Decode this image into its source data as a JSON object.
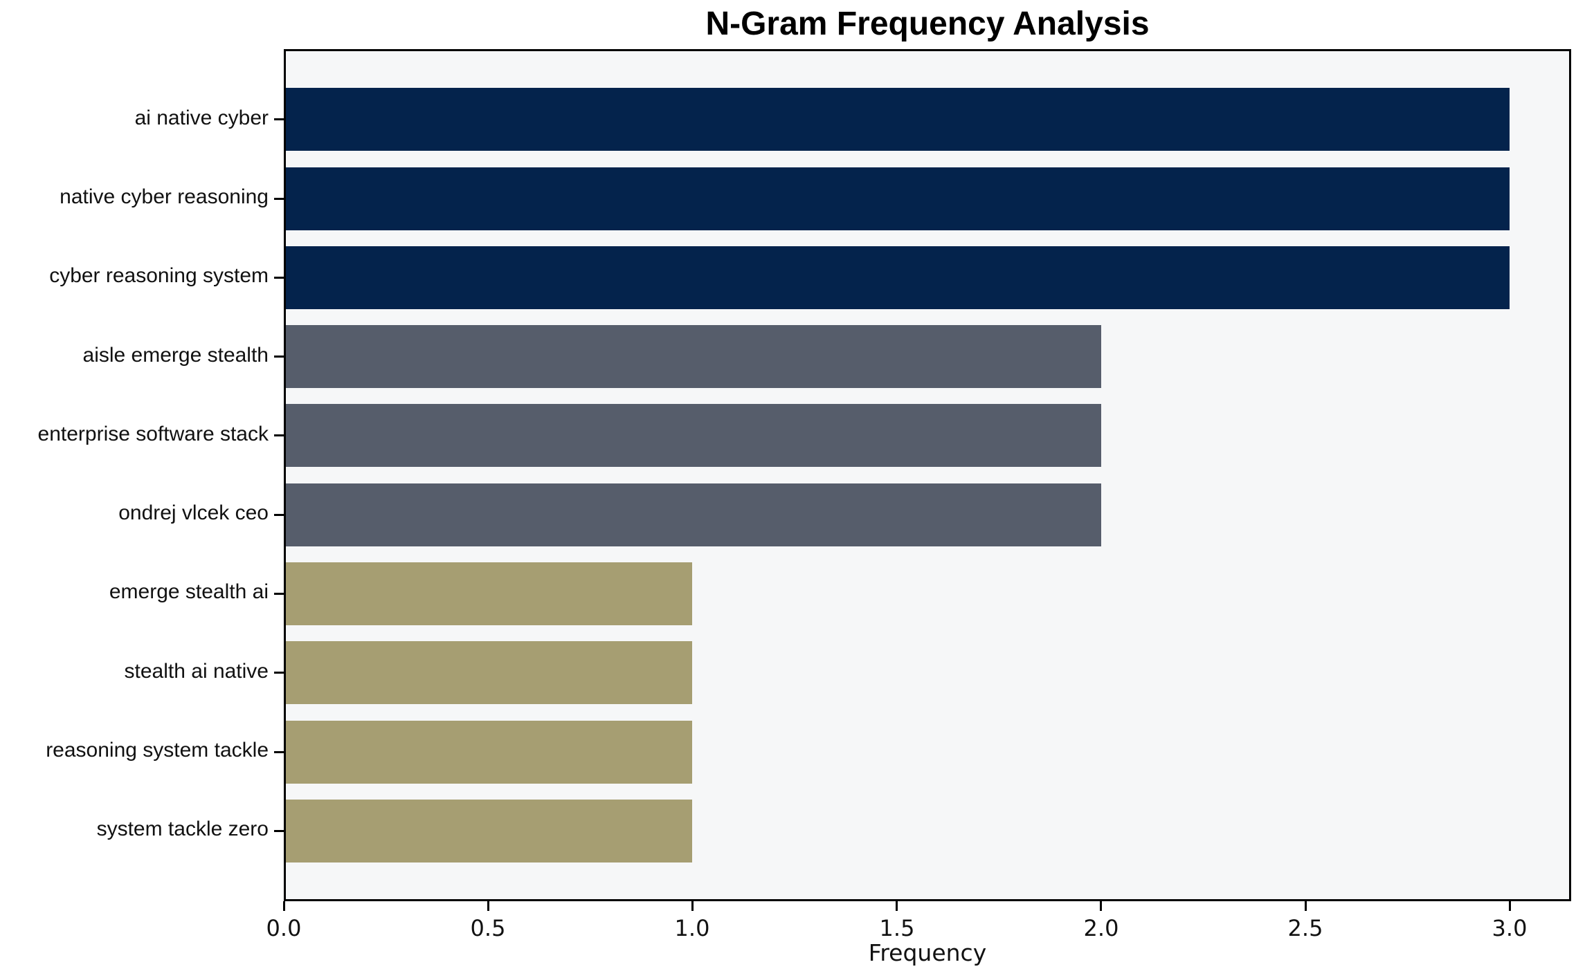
{
  "chart_data": {
    "type": "bar",
    "orientation": "horizontal",
    "title": "N-Gram Frequency Analysis",
    "xlabel": "Frequency",
    "ylabel": "",
    "categories": [
      "ai native cyber",
      "native cyber reasoning",
      "cyber reasoning system",
      "aisle emerge stealth",
      "enterprise software stack",
      "ondrej vlcek ceo",
      "emerge stealth ai",
      "stealth ai native",
      "reasoning system tackle",
      "system tackle zero"
    ],
    "values": [
      3,
      3,
      3,
      2,
      2,
      2,
      1,
      1,
      1,
      1
    ],
    "bar_colors": [
      "#04234c",
      "#04234c",
      "#04234c",
      "#565d6b",
      "#565d6b",
      "#565d6b",
      "#a69e72",
      "#a69e72",
      "#a69e72",
      "#a69e72"
    ],
    "xlim": [
      0,
      3.15
    ],
    "xticks": [
      0.0,
      0.5,
      1.0,
      1.5,
      2.0,
      2.5,
      3.0
    ],
    "xtick_labels": [
      "0.0",
      "0.5",
      "1.0",
      "1.5",
      "2.0",
      "2.5",
      "3.0"
    ],
    "grid": false,
    "legend": "none",
    "colors": {
      "bar_freq_3": "#04234c",
      "bar_freq_2": "#565d6b",
      "bar_freq_1": "#a69e72",
      "plot_background": "#f6f7f8",
      "figure_background": "#ffffff",
      "axis_spine": "#000000",
      "text": "#111111"
    }
  }
}
